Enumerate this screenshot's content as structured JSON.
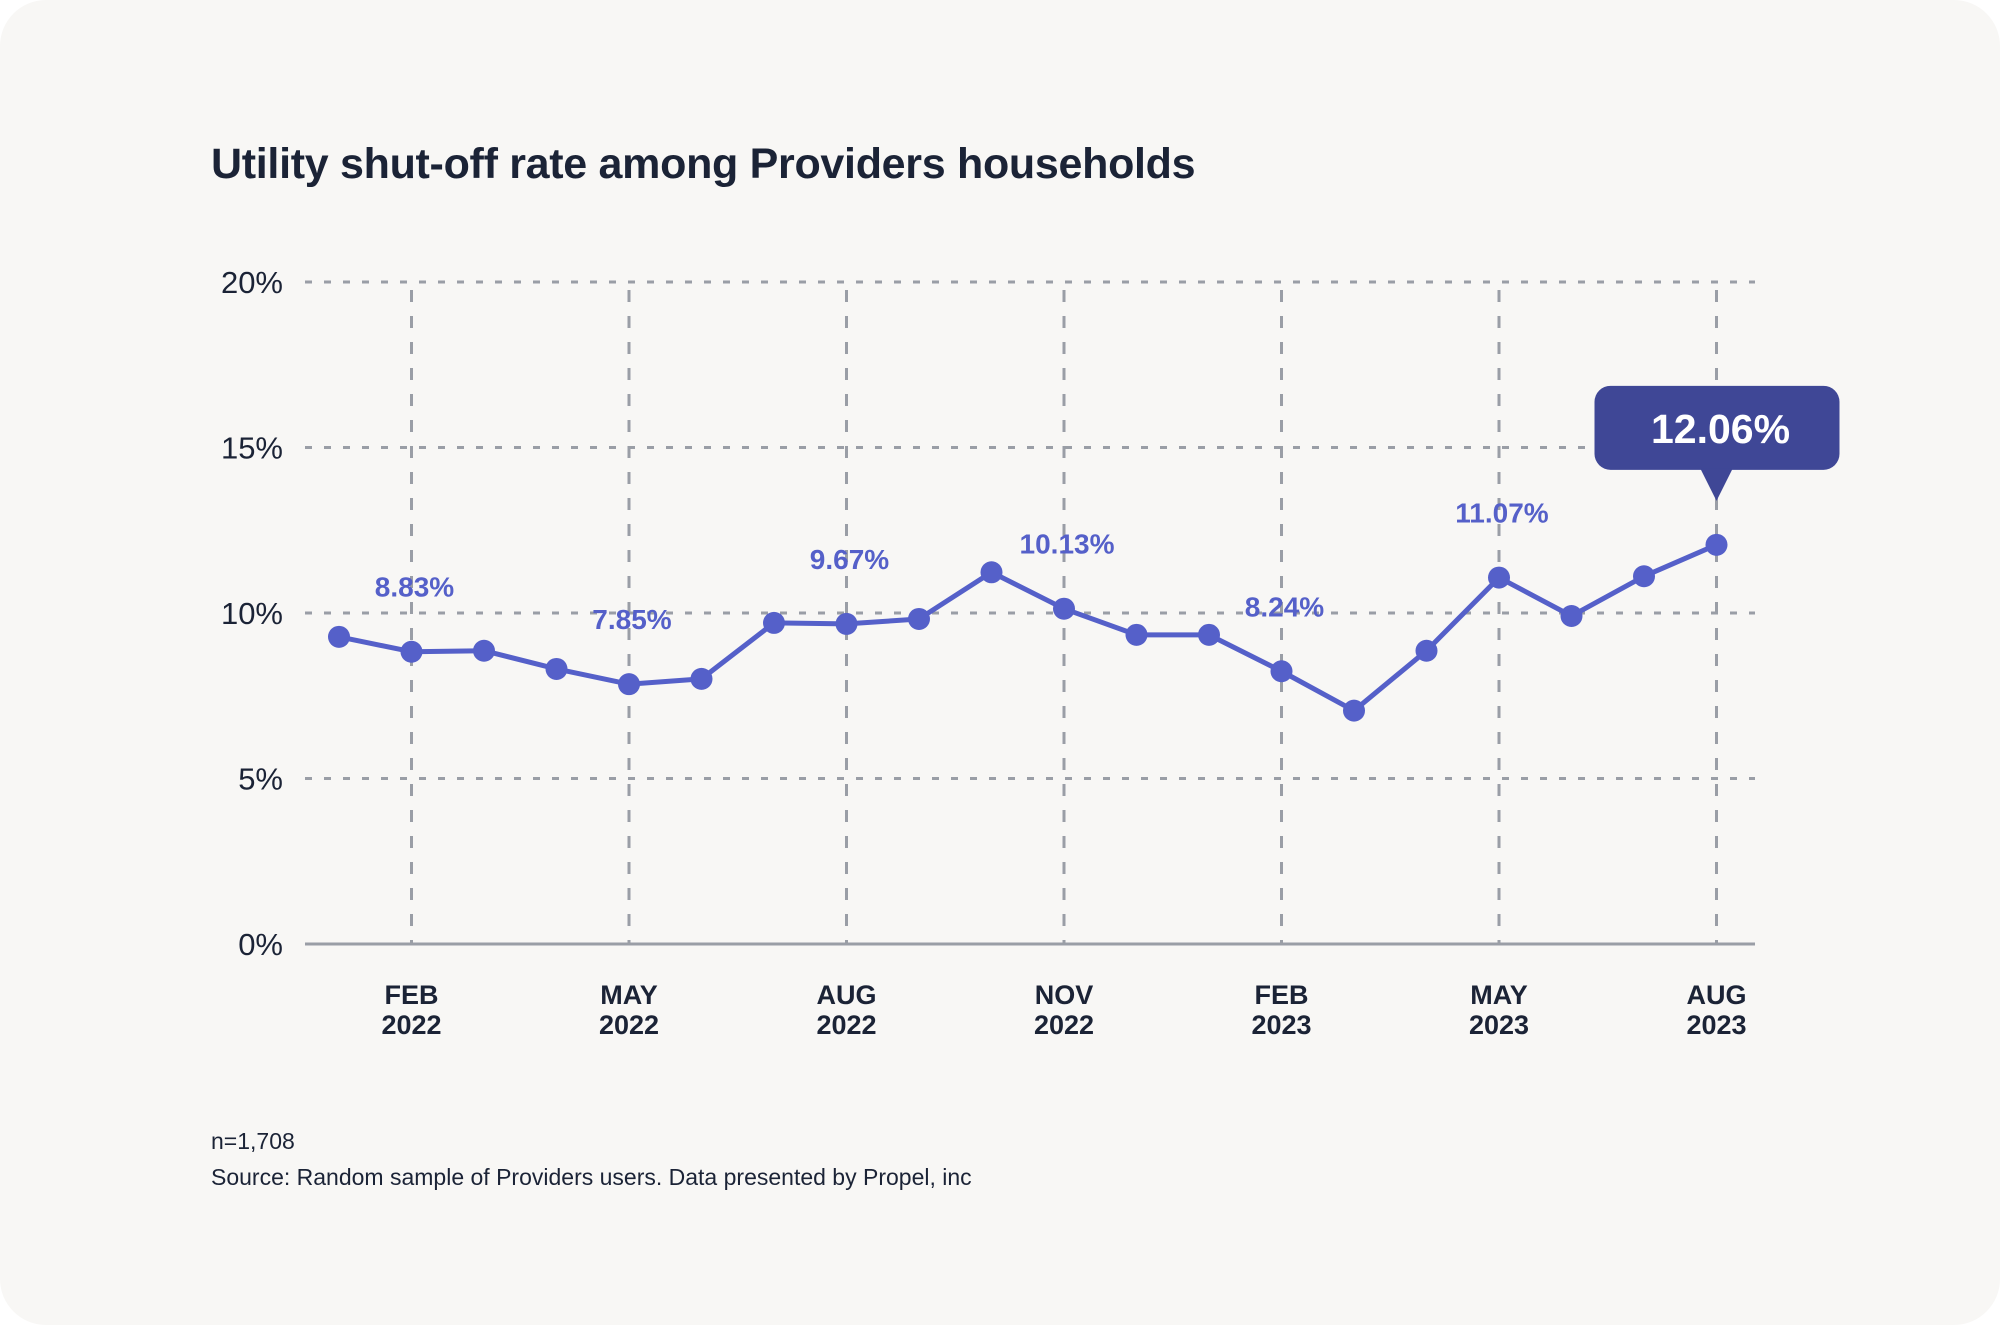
{
  "card": {
    "background": "#f8f7f5"
  },
  "title": "Utility shut-off rate among Providers households",
  "footer": {
    "n": "n=1,708",
    "source": "Source: Random sample of Providers users. Data presented by Propel, inc"
  },
  "chart_data": {
    "type": "line",
    "title": "Utility shut-off rate among Providers households",
    "xlabel": "",
    "ylabel": "",
    "ylim": [
      0,
      20
    ],
    "grid": true,
    "legend": "none",
    "color": "#5560c9",
    "callout_color": "#3f4796",
    "yticks": [
      "0%",
      "5%",
      "10%",
      "15%",
      "20%"
    ],
    "ytick_values": [
      0,
      5,
      10,
      15,
      20
    ],
    "x": [
      "Jan 2022",
      "Feb 2022",
      "Mar 2022",
      "Apr 2022",
      "May 2022",
      "Jun 2022",
      "Jul 2022",
      "Aug 2022",
      "Sep 2022",
      "Oct 2022",
      "Nov 2022",
      "Dec 2022",
      "Jan 2023",
      "Feb 2023",
      "Mar 2023",
      "Apr 2023",
      "May 2023",
      "Jun 2023",
      "Jul 2023",
      "Aug 2023"
    ],
    "xticks": [
      {
        "index": 1,
        "line1": "FEB",
        "line2": "2022"
      },
      {
        "index": 4,
        "line1": "MAY",
        "line2": "2022"
      },
      {
        "index": 7,
        "line1": "AUG",
        "line2": "2022"
      },
      {
        "index": 10,
        "line1": "NOV",
        "line2": "2022"
      },
      {
        "index": 13,
        "line1": "FEB",
        "line2": "2023"
      },
      {
        "index": 16,
        "line1": "MAY",
        "line2": "2023"
      },
      {
        "index": 19,
        "line1": "AUG",
        "line2": "2023"
      }
    ],
    "series": [
      {
        "name": "Utility shut-off rate",
        "values": [
          9.28,
          8.83,
          8.86,
          8.31,
          7.85,
          8.01,
          9.7,
          9.67,
          9.82,
          11.23,
          10.13,
          9.34,
          9.34,
          8.24,
          7.05,
          8.86,
          11.07,
          9.91,
          11.11,
          12.06
        ]
      }
    ],
    "data_labels": [
      {
        "index": 1,
        "text": "8.83%"
      },
      {
        "index": 4,
        "text": "7.85%"
      },
      {
        "index": 7,
        "text": "9.67%"
      },
      {
        "index": 10,
        "text": "10.13%"
      },
      {
        "index": 13,
        "text": "8.24%"
      },
      {
        "index": 16,
        "text": "11.07%"
      }
    ],
    "callout": {
      "index": 19,
      "text": "12.06%"
    }
  }
}
